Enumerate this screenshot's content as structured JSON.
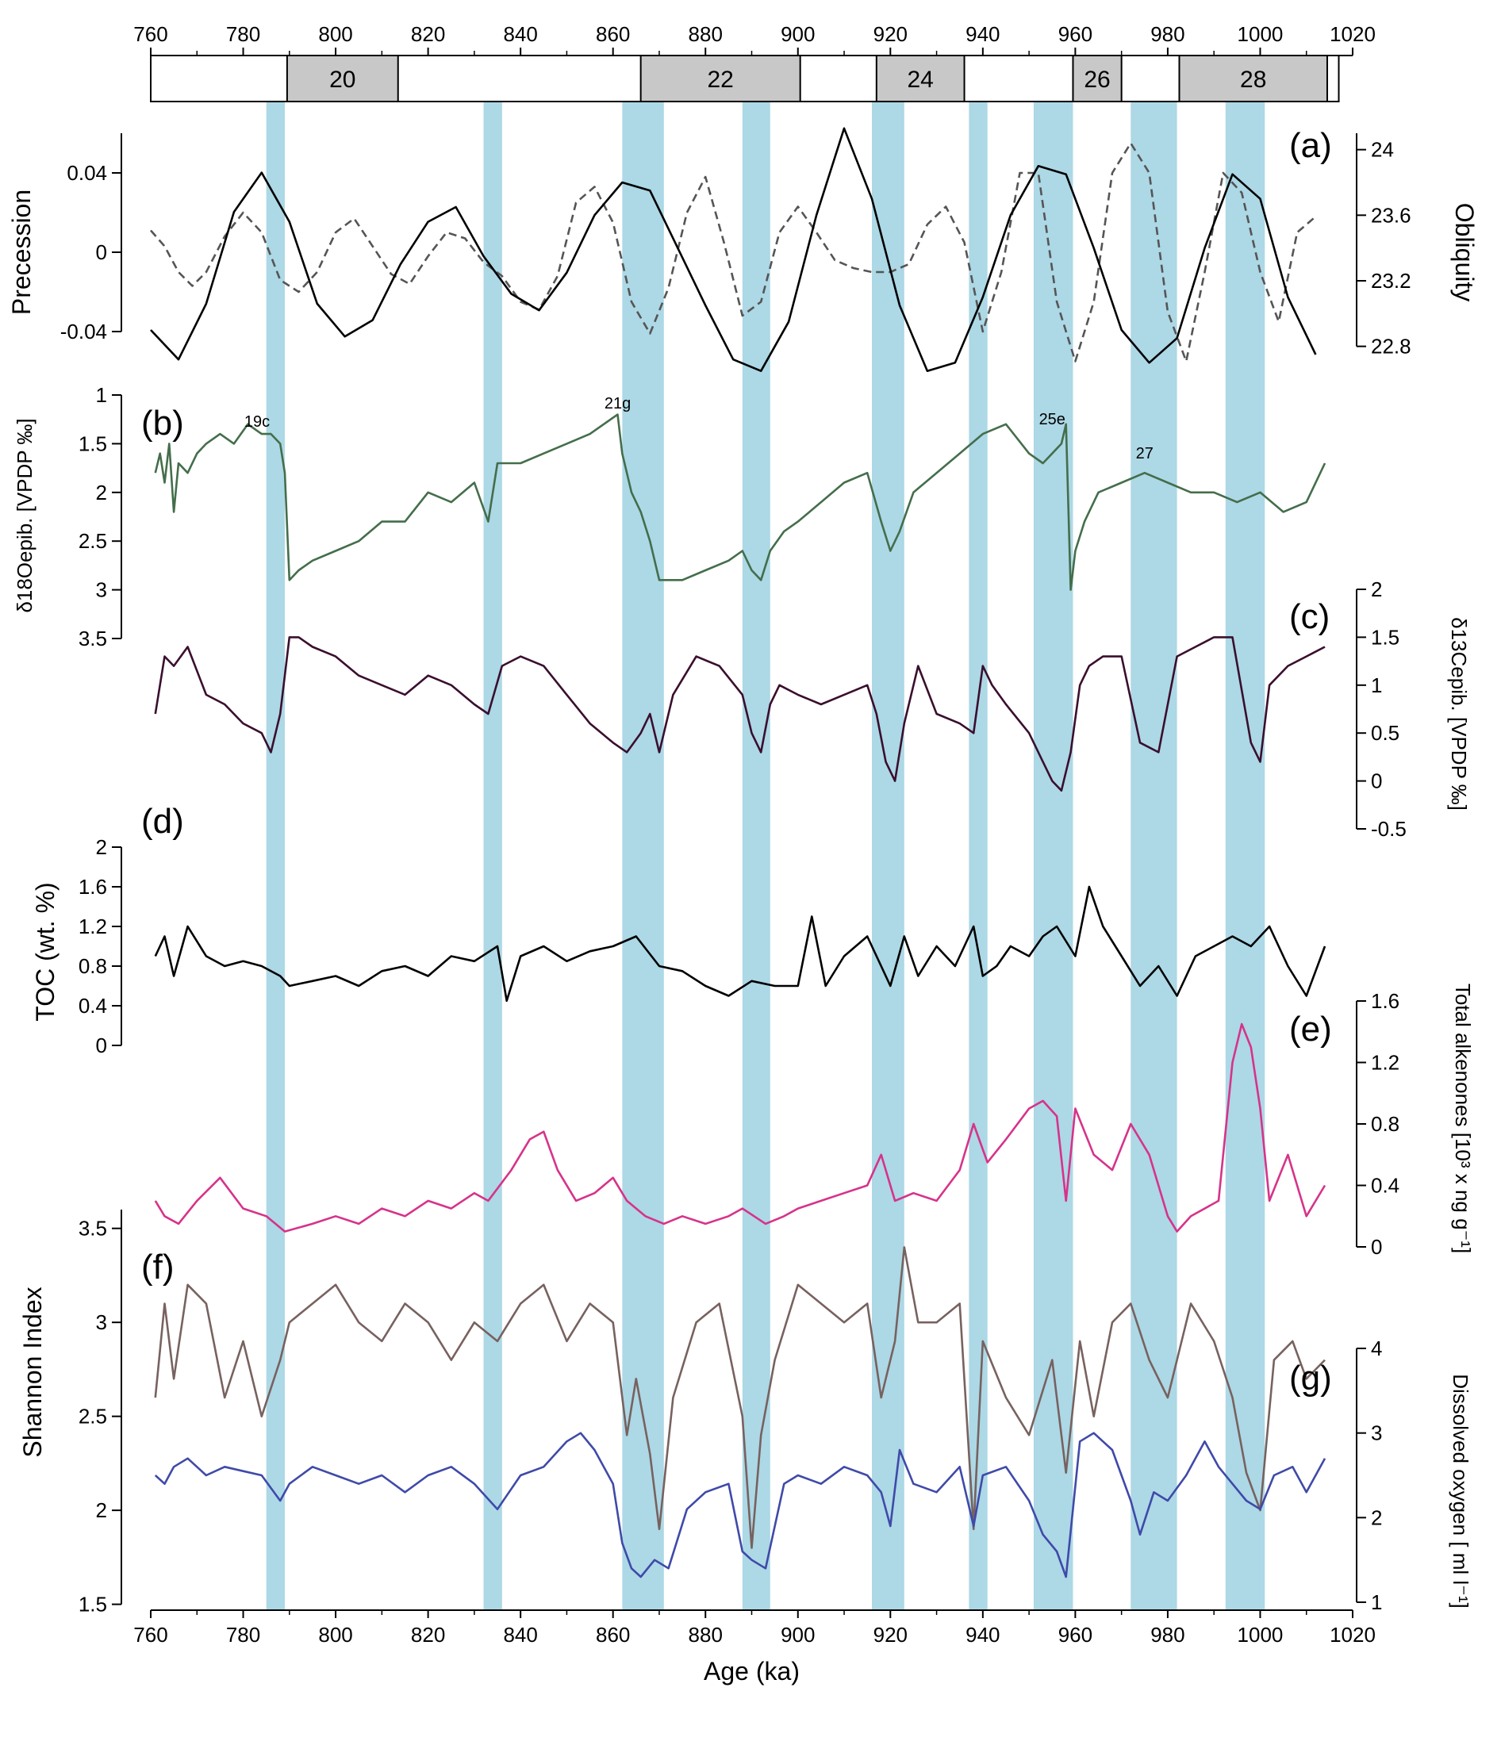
{
  "figure": {
    "x_axis": {
      "label": "Age (ka)",
      "range": [
        760,
        1020
      ],
      "ticks": [
        760,
        780,
        800,
        820,
        840,
        860,
        880,
        900,
        920,
        940,
        960,
        980,
        1000,
        1020
      ]
    },
    "colors": {
      "band": "#add8e6",
      "obliquity": "#000000",
      "precession": "#555555",
      "d18o": "#446e4b",
      "d13c": "#3a0f2e",
      "toc": "#000000",
      "alkenones": "#d6338a",
      "shannon": "#77625f",
      "oxygen": "#3f4aa8",
      "mis_box": "#c8c8c8"
    },
    "mis_stages": [
      {
        "label": "20",
        "start": 789.5,
        "end": 813.5
      },
      {
        "label": "22",
        "start": 866,
        "end": 900.5
      },
      {
        "label": "24",
        "start": 917,
        "end": 936
      },
      {
        "label": "26",
        "start": 959.5,
        "end": 970
      },
      {
        "label": "28",
        "start": 982.5,
        "end": 1014.5
      }
    ],
    "mis_box_range": [
      760,
      1017
    ],
    "blue_bands": [
      [
        785,
        789
      ],
      [
        832,
        836
      ],
      [
        862,
        871
      ],
      [
        888,
        894
      ],
      [
        916,
        923
      ],
      [
        937,
        941
      ],
      [
        951,
        959.5
      ],
      [
        972,
        982
      ],
      [
        992.5,
        1001
      ]
    ],
    "panel_labels": [
      "(a)",
      "(b)",
      "(c)",
      "(d)",
      "(e)",
      "(f)",
      "(g)"
    ],
    "annotations": [
      {
        "text": "19c",
        "age": 783
      },
      {
        "text": "21g",
        "age": 861
      },
      {
        "text": "25e",
        "age": 955
      },
      {
        "text": "27",
        "age": 975
      }
    ]
  },
  "chart_data": [
    {
      "id": "a-precession",
      "type": "line",
      "ylabel": "Precession",
      "ylim": [
        -0.06,
        0.06
      ],
      "yticks": [
        -0.04,
        0,
        0.04
      ],
      "ytick_labels": [
        "-0.04",
        "0",
        "0.04"
      ],
      "side": "left",
      "style": "dashed",
      "x": [
        760,
        763,
        766,
        769,
        772,
        776,
        780,
        784,
        788,
        792,
        796,
        800,
        804,
        808,
        812,
        816,
        820,
        824,
        828,
        832,
        836,
        840,
        844,
        848,
        852,
        856,
        860,
        864,
        868,
        872,
        876,
        880,
        884,
        888,
        892,
        896,
        900,
        904,
        908,
        912,
        916,
        920,
        924,
        928,
        932,
        936,
        940,
        944,
        948,
        952,
        956,
        960,
        964,
        968,
        972,
        976,
        980,
        984,
        988,
        992,
        996,
        1000,
        1004,
        1008,
        1012
      ],
      "y": [
        0.011,
        0.003,
        -0.01,
        -0.017,
        -0.01,
        0.008,
        0.02,
        0.01,
        -0.014,
        -0.02,
        -0.01,
        0.01,
        0.017,
        0.003,
        -0.011,
        -0.016,
        -0.002,
        0.01,
        0.007,
        -0.005,
        -0.012,
        -0.025,
        -0.029,
        -0.012,
        0.025,
        0.033,
        0.015,
        -0.025,
        -0.041,
        -0.018,
        0.02,
        0.038,
        0.005,
        -0.032,
        -0.025,
        0.01,
        0.023,
        0.01,
        -0.004,
        -0.008,
        -0.01,
        -0.01,
        -0.006,
        0.014,
        0.023,
        0.005,
        -0.04,
        -0.01,
        0.04,
        0.04,
        -0.025,
        -0.055,
        -0.025,
        0.04,
        0.055,
        0.04,
        -0.03,
        -0.055,
        -0.01,
        0.04,
        0.03,
        -0.01,
        -0.035,
        0.01,
        0.018
      ]
    },
    {
      "id": "a-obliquity",
      "type": "line",
      "ylabel": "Obliquity",
      "ylim": [
        22.6,
        24.1
      ],
      "yticks": [
        22.8,
        23.2,
        23.6,
        24
      ],
      "ytick_labels": [
        "22.8",
        "23.2",
        "23.6",
        "24"
      ],
      "side": "right",
      "x": [
        760,
        766,
        772,
        778,
        784,
        790,
        796,
        802,
        808,
        814,
        820,
        826,
        832,
        838,
        844,
        850,
        856,
        862,
        868,
        874,
        880,
        886,
        892,
        898,
        904,
        910,
        916,
        922,
        928,
        934,
        940,
        946,
        952,
        958,
        964,
        970,
        976,
        982,
        988,
        994,
        1000,
        1006,
        1012
      ],
      "y": [
        22.9,
        22.72,
        23.06,
        23.62,
        23.86,
        23.56,
        23.06,
        22.86,
        22.96,
        23.3,
        23.56,
        23.65,
        23.35,
        23.12,
        23.02,
        23.25,
        23.6,
        23.8,
        23.75,
        23.4,
        23.05,
        22.72,
        22.65,
        22.95,
        23.6,
        24.13,
        23.7,
        23.05,
        22.65,
        22.7,
        23.1,
        23.6,
        23.9,
        23.85,
        23.4,
        22.9,
        22.7,
        22.85,
        23.4,
        23.85,
        23.7,
        23.1,
        22.75
      ]
    },
    {
      "id": "b-d18o",
      "type": "line",
      "ylabel": "δ18Oepib. [VPDP ‰]",
      "ylim": [
        3.5,
        1.0
      ],
      "yticks": [
        1,
        1.5,
        2,
        2.5,
        3,
        3.5
      ],
      "ytick_labels": [
        "1",
        "1.5",
        "2",
        "2.5",
        "3",
        "3.5"
      ],
      "inverted": true,
      "side": "left",
      "x": [
        761,
        762,
        763,
        764,
        765,
        766,
        768,
        770,
        772,
        775,
        778,
        781,
        784,
        786,
        788,
        789,
        790,
        792,
        795,
        800,
        805,
        810,
        815,
        820,
        825,
        830,
        833,
        835,
        840,
        845,
        850,
        855,
        858,
        861,
        862,
        864,
        866,
        868,
        870,
        875,
        880,
        885,
        888,
        890,
        892,
        894,
        897,
        900,
        905,
        910,
        915,
        918,
        920,
        922,
        925,
        930,
        935,
        940,
        945,
        950,
        953,
        955,
        957,
        958,
        959,
        960,
        962,
        965,
        970,
        975,
        980,
        985,
        990,
        995,
        1000,
        1005,
        1010,
        1014
      ],
      "y": [
        1.8,
        1.6,
        1.9,
        1.5,
        2.2,
        1.7,
        1.8,
        1.6,
        1.5,
        1.4,
        1.5,
        1.3,
        1.4,
        1.4,
        1.5,
        1.8,
        2.9,
        2.8,
        2.7,
        2.6,
        2.5,
        2.3,
        2.3,
        2.0,
        2.1,
        1.9,
        2.3,
        1.7,
        1.7,
        1.6,
        1.5,
        1.4,
        1.3,
        1.2,
        1.6,
        2.0,
        2.2,
        2.5,
        2.9,
        2.9,
        2.8,
        2.7,
        2.6,
        2.8,
        2.9,
        2.6,
        2.4,
        2.3,
        2.1,
        1.9,
        1.8,
        2.3,
        2.6,
        2.4,
        2.0,
        1.8,
        1.6,
        1.4,
        1.3,
        1.6,
        1.7,
        1.6,
        1.5,
        1.3,
        3.0,
        2.6,
        2.3,
        2.0,
        1.9,
        1.8,
        1.9,
        2.0,
        2.0,
        2.1,
        2.0,
        2.2,
        2.1,
        1.7
      ]
    },
    {
      "id": "c-d13c",
      "type": "line",
      "ylabel": "δ13Cepib. [VPDP ‰]",
      "ylim": [
        -0.5,
        2.0
      ],
      "yticks": [
        -0.5,
        0,
        0.5,
        1,
        1.5,
        2
      ],
      "ytick_labels": [
        "-0.5",
        "0",
        "0.5",
        "1",
        "1.5",
        "2"
      ],
      "side": "right",
      "x": [
        761,
        763,
        765,
        768,
        772,
        776,
        780,
        784,
        786,
        788,
        790,
        792,
        795,
        800,
        805,
        810,
        815,
        820,
        825,
        830,
        833,
        836,
        840,
        845,
        850,
        855,
        860,
        863,
        866,
        868,
        870,
        873,
        878,
        883,
        888,
        890,
        892,
        894,
        896,
        900,
        905,
        910,
        915,
        917,
        919,
        921,
        923,
        926,
        930,
        935,
        938,
        940,
        942,
        945,
        950,
        953,
        955,
        957,
        959,
        961,
        963,
        966,
        970,
        974,
        978,
        982,
        986,
        990,
        994,
        998,
        1000,
        1002,
        1006,
        1010,
        1014
      ],
      "y": [
        0.7,
        1.3,
        1.2,
        1.4,
        0.9,
        0.8,
        0.6,
        0.5,
        0.3,
        0.7,
        1.5,
        1.5,
        1.4,
        1.3,
        1.1,
        1.0,
        0.9,
        1.1,
        1.0,
        0.8,
        0.7,
        1.2,
        1.3,
        1.2,
        0.9,
        0.6,
        0.4,
        0.3,
        0.5,
        0.7,
        0.3,
        0.9,
        1.3,
        1.2,
        0.9,
        0.5,
        0.3,
        0.8,
        1.0,
        0.9,
        0.8,
        0.9,
        1.0,
        0.7,
        0.2,
        0.0,
        0.6,
        1.2,
        0.7,
        0.6,
        0.5,
        1.2,
        1.0,
        0.8,
        0.5,
        0.2,
        0.0,
        -0.1,
        0.3,
        1.0,
        1.2,
        1.3,
        1.3,
        0.4,
        0.3,
        1.3,
        1.4,
        1.5,
        1.5,
        0.4,
        0.2,
        1.0,
        1.2,
        1.3,
        1.4
      ]
    },
    {
      "id": "d-toc",
      "type": "line",
      "ylabel": "TOC (wt. %)",
      "ylim": [
        0,
        2.0
      ],
      "yticks": [
        0,
        0.4,
        0.8,
        1.2,
        1.6,
        2
      ],
      "ytick_labels": [
        "0",
        "0.4",
        "0.8",
        "1.2",
        "1.6",
        "2"
      ],
      "side": "left",
      "x": [
        761,
        763,
        765,
        768,
        772,
        776,
        780,
        784,
        788,
        790,
        795,
        800,
        805,
        810,
        815,
        820,
        825,
        830,
        835,
        837,
        840,
        845,
        850,
        855,
        860,
        865,
        870,
        875,
        880,
        885,
        890,
        895,
        900,
        903,
        906,
        910,
        915,
        918,
        920,
        923,
        926,
        930,
        934,
        938,
        940,
        943,
        946,
        950,
        953,
        956,
        960,
        963,
        966,
        970,
        974,
        978,
        982,
        986,
        990,
        994,
        998,
        1002,
        1006,
        1010,
        1014
      ],
      "y": [
        0.9,
        1.1,
        0.7,
        1.2,
        0.9,
        0.8,
        0.85,
        0.8,
        0.7,
        0.6,
        0.65,
        0.7,
        0.6,
        0.75,
        0.8,
        0.7,
        0.9,
        0.85,
        1.0,
        0.45,
        0.9,
        1.0,
        0.85,
        0.95,
        1.0,
        1.1,
        0.8,
        0.75,
        0.6,
        0.5,
        0.65,
        0.6,
        0.6,
        1.3,
        0.6,
        0.9,
        1.1,
        0.8,
        0.6,
        1.1,
        0.7,
        1.0,
        0.8,
        1.2,
        0.7,
        0.8,
        1.0,
        0.9,
        1.1,
        1.2,
        0.9,
        1.6,
        1.2,
        0.9,
        0.6,
        0.8,
        0.5,
        0.9,
        1.0,
        1.1,
        1.0,
        1.2,
        0.8,
        0.5,
        1.0
      ]
    },
    {
      "id": "e-alkenones",
      "type": "line",
      "ylabel": "Total alkenones [10³ x ng g⁻¹]",
      "ylim": [
        0,
        1.6
      ],
      "yticks": [
        0,
        0.4,
        0.8,
        1.2,
        1.6
      ],
      "ytick_labels": [
        "0",
        "0.4",
        "0.8",
        "1.2",
        "1.6"
      ],
      "side": "right",
      "x": [
        761,
        763,
        766,
        770,
        775,
        780,
        785,
        789,
        795,
        800,
        805,
        810,
        815,
        820,
        825,
        830,
        833,
        838,
        842,
        845,
        848,
        852,
        856,
        860,
        863,
        867,
        871,
        875,
        880,
        885,
        888,
        893,
        897,
        900,
        905,
        910,
        915,
        918,
        921,
        925,
        930,
        935,
        938,
        941,
        945,
        950,
        953,
        956,
        958,
        960,
        964,
        968,
        972,
        976,
        980,
        982,
        985,
        988,
        991,
        994,
        996,
        998,
        1000,
        1002,
        1006,
        1010,
        1014
      ],
      "y": [
        0.3,
        0.2,
        0.15,
        0.3,
        0.45,
        0.25,
        0.2,
        0.1,
        0.15,
        0.2,
        0.15,
        0.25,
        0.2,
        0.3,
        0.25,
        0.35,
        0.3,
        0.5,
        0.7,
        0.75,
        0.5,
        0.3,
        0.35,
        0.45,
        0.3,
        0.2,
        0.15,
        0.2,
        0.15,
        0.2,
        0.25,
        0.15,
        0.2,
        0.25,
        0.3,
        0.35,
        0.4,
        0.6,
        0.3,
        0.35,
        0.3,
        0.5,
        0.8,
        0.55,
        0.7,
        0.9,
        0.95,
        0.85,
        0.3,
        0.9,
        0.6,
        0.5,
        0.8,
        0.6,
        0.2,
        0.1,
        0.2,
        0.25,
        0.3,
        1.2,
        1.45,
        1.3,
        0.9,
        0.3,
        0.6,
        0.2,
        0.4
      ]
    },
    {
      "id": "f-shannon",
      "type": "line",
      "ylabel": "Shannon Index",
      "ylim": [
        1.3,
        3.6
      ],
      "yticks": [
        1.5,
        2,
        2.5,
        3,
        3.5
      ],
      "ytick_labels": [
        "1.5",
        "2",
        "2.5",
        "3",
        "3.5"
      ],
      "side": "left",
      "x": [
        761,
        763,
        765,
        768,
        772,
        776,
        780,
        784,
        788,
        790,
        795,
        800,
        805,
        810,
        815,
        820,
        825,
        830,
        835,
        840,
        845,
        850,
        855,
        860,
        863,
        865,
        868,
        870,
        873,
        878,
        883,
        888,
        890,
        892,
        895,
        900,
        905,
        910,
        915,
        918,
        921,
        923,
        926,
        930,
        935,
        938,
        940,
        945,
        950,
        955,
        958,
        961,
        964,
        968,
        972,
        976,
        980,
        985,
        990,
        994,
        997,
        1000,
        1003,
        1007,
        1010,
        1014
      ],
      "y": [
        2.6,
        3.1,
        2.7,
        3.2,
        3.1,
        2.6,
        2.9,
        2.5,
        2.8,
        3.0,
        3.1,
        3.2,
        3.0,
        2.9,
        3.1,
        3.0,
        2.8,
        3.0,
        2.9,
        3.1,
        3.2,
        2.9,
        3.1,
        3.0,
        2.4,
        2.7,
        2.3,
        1.9,
        2.6,
        3.0,
        3.1,
        2.5,
        1.8,
        2.4,
        2.8,
        3.2,
        3.1,
        3.0,
        3.1,
        2.6,
        2.9,
        3.4,
        3.0,
        3.0,
        3.1,
        1.9,
        2.9,
        2.6,
        2.4,
        2.8,
        2.2,
        2.9,
        2.5,
        3.0,
        3.1,
        2.8,
        2.6,
        3.1,
        2.9,
        2.6,
        2.2,
        2.0,
        2.8,
        2.9,
        2.7,
        2.8
      ]
    },
    {
      "id": "g-oxygen",
      "type": "line",
      "ylabel": "Dissolved oxygen [ ml l⁻¹]",
      "ylim": [
        1,
        4
      ],
      "yticks": [
        1,
        2,
        3,
        4
      ],
      "ytick_labels": [
        "1",
        "2",
        "3",
        "4"
      ],
      "side": "right",
      "x": [
        761,
        763,
        765,
        768,
        772,
        776,
        780,
        784,
        788,
        790,
        795,
        800,
        805,
        810,
        815,
        820,
        825,
        830,
        835,
        840,
        845,
        850,
        853,
        856,
        860,
        862,
        864,
        866,
        869,
        872,
        876,
        880,
        885,
        888,
        890,
        893,
        897,
        900,
        905,
        910,
        915,
        918,
        920,
        922,
        925,
        930,
        935,
        938,
        940,
        945,
        950,
        953,
        956,
        958,
        961,
        964,
        968,
        972,
        974,
        977,
        980,
        984,
        988,
        991,
        994,
        997,
        1000,
        1003,
        1007,
        1010,
        1014
      ],
      "y": [
        2.5,
        2.4,
        2.6,
        2.7,
        2.5,
        2.6,
        2.55,
        2.5,
        2.2,
        2.4,
        2.6,
        2.5,
        2.4,
        2.5,
        2.3,
        2.5,
        2.6,
        2.4,
        2.1,
        2.5,
        2.6,
        2.9,
        3.0,
        2.8,
        2.4,
        1.7,
        1.4,
        1.3,
        1.5,
        1.4,
        2.1,
        2.3,
        2.4,
        1.6,
        1.5,
        1.4,
        2.4,
        2.5,
        2.4,
        2.6,
        2.5,
        2.3,
        1.9,
        2.8,
        2.4,
        2.3,
        2.6,
        1.9,
        2.5,
        2.6,
        2.2,
        1.8,
        1.6,
        1.3,
        2.9,
        3.0,
        2.8,
        2.2,
        1.8,
        2.3,
        2.2,
        2.5,
        2.9,
        2.6,
        2.4,
        2.2,
        2.1,
        2.5,
        2.6,
        2.3,
        2.7
      ]
    }
  ]
}
